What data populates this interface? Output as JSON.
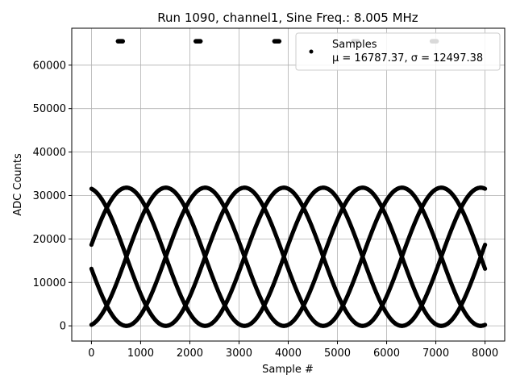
{
  "chart_data": {
    "type": "scatter",
    "title": "Run 1090, channel1, Sine Freq.: 8.005 MHz",
    "xlabel": "Sample #",
    "ylabel": "ADC Counts",
    "xlim": [
      -400,
      8400
    ],
    "ylim": [
      -3500,
      68500
    ],
    "grid": true,
    "xticks": [
      0,
      1000,
      2000,
      3000,
      4000,
      5000,
      6000,
      7000,
      8000
    ],
    "xtick_labels": [
      "0",
      "1000",
      "2000",
      "3000",
      "4000",
      "5000",
      "6000",
      "7000",
      "8000"
    ],
    "yticks": [
      0,
      10000,
      20000,
      30000,
      40000,
      50000,
      60000
    ],
    "ytick_labels": [
      "0",
      "10000",
      "20000",
      "30000",
      "40000",
      "50000",
      "60000"
    ],
    "legend": {
      "position": "top-right",
      "title_line": "Samples",
      "stats_line": "μ = 16787.37, σ = 12497.38"
    },
    "series": [
      {
        "name": "Samples",
        "color": "#000000",
        "sine": {
          "offset": 15900,
          "amplitude": 15900,
          "period_samples": 3200,
          "phase_deg": [
            -80,
            10,
            100,
            190
          ]
        },
        "x_range": [
          0,
          8000
        ],
        "saturated_value": 65500,
        "saturated_clusters_x": [
          [
            540,
            640
          ],
          [
            2120,
            2220
          ],
          [
            3720,
            3820
          ],
          [
            5320,
            5420
          ],
          [
            6920,
            7020
          ]
        ]
      }
    ]
  },
  "colors": {
    "points": "#000000",
    "grid": "#b0b0b0",
    "axes": "#000000"
  }
}
